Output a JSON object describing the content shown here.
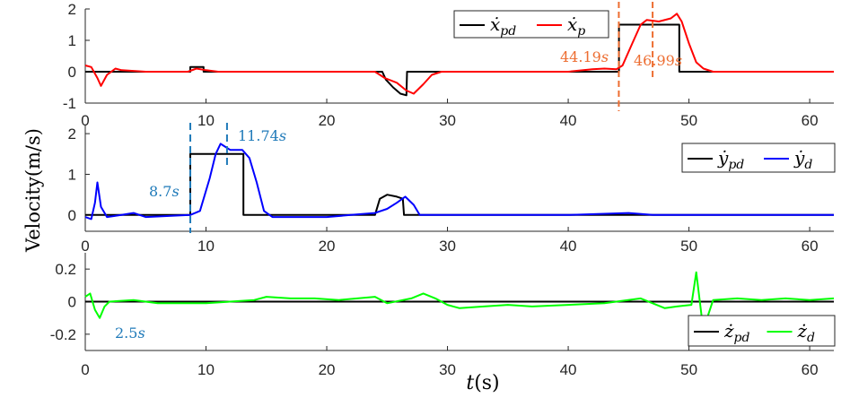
{
  "figure": {
    "ylabel": "Velocity(m/s)",
    "xlabel": "t(s)"
  },
  "chart_data": [
    {
      "type": "line",
      "xlim": [
        0,
        62
      ],
      "ylim": [
        -1,
        2
      ],
      "xticks": [
        "0",
        "10",
        "20",
        "30",
        "40",
        "50",
        "60"
      ],
      "yticks": [
        "-1",
        "0",
        "1",
        "2"
      ],
      "grid": false,
      "legend": "top-right",
      "series": [
        {
          "name": "ẋpd",
          "legend_base": "ẋ",
          "legend_sub": "pd",
          "color": "#000000",
          "points": [
            [
              0,
              0
            ],
            [
              8.7,
              0
            ],
            [
              8.7,
              0.15
            ],
            [
              9.8,
              0.15
            ],
            [
              9.8,
              0
            ],
            [
              24.6,
              0
            ],
            [
              24.9,
              -0.25
            ],
            [
              25.5,
              -0.5
            ],
            [
              26.1,
              -0.7
            ],
            [
              26.6,
              -0.75
            ],
            [
              26.65,
              0
            ],
            [
              44.2,
              0
            ],
            [
              44.2,
              1.5
            ],
            [
              49.2,
              1.5
            ],
            [
              49.2,
              0
            ],
            [
              62,
              0
            ]
          ]
        },
        {
          "name": "ẋp",
          "legend_base": "ẋ",
          "legend_sub": "p",
          "color": "#ff0000",
          "points": [
            [
              0,
              0.2
            ],
            [
              0.5,
              0.15
            ],
            [
              1,
              -0.2
            ],
            [
              1.3,
              -0.45
            ],
            [
              1.8,
              -0.1
            ],
            [
              2.5,
              0.1
            ],
            [
              3,
              0.05
            ],
            [
              5,
              0
            ],
            [
              8.5,
              0
            ],
            [
              9.2,
              0.1
            ],
            [
              10,
              0.05
            ],
            [
              11,
              0
            ],
            [
              24,
              0
            ],
            [
              24.8,
              -0.2
            ],
            [
              25.8,
              -0.35
            ],
            [
              26.6,
              -0.6
            ],
            [
              27.2,
              -0.7
            ],
            [
              28,
              -0.4
            ],
            [
              28.7,
              -0.1
            ],
            [
              29.5,
              0
            ],
            [
              35,
              0
            ],
            [
              40,
              0
            ],
            [
              42,
              0.08
            ],
            [
              43,
              0.1
            ],
            [
              44,
              0.08
            ],
            [
              44.5,
              0.2
            ],
            [
              45.3,
              0.9
            ],
            [
              46,
              1.5
            ],
            [
              46.5,
              1.65
            ],
            [
              47.5,
              1.6
            ],
            [
              48.5,
              1.7
            ],
            [
              49,
              1.85
            ],
            [
              49.4,
              1.6
            ],
            [
              50,
              0.9
            ],
            [
              50.6,
              0.3
            ],
            [
              51.2,
              0.1
            ],
            [
              52,
              0
            ],
            [
              62,
              0
            ]
          ]
        }
      ],
      "annotations": [
        {
          "text": "44.19",
          "unit": "s",
          "x": 44.19,
          "color": "#ed6d31"
        },
        {
          "text": "46.99",
          "unit": "s",
          "x": 46.99,
          "color": "#ed6d31"
        }
      ]
    },
    {
      "type": "line",
      "xlim": [
        0,
        62
      ],
      "ylim": [
        -0.4,
        2.2
      ],
      "xticks": [
        "0",
        "10",
        "20",
        "30",
        "40",
        "50",
        "60"
      ],
      "yticks": [
        "0",
        "1",
        "2"
      ],
      "grid": false,
      "legend": "top-right",
      "series": [
        {
          "name": "ẏpd",
          "legend_base": "ẏ",
          "legend_sub": "pd",
          "color": "#000000",
          "points": [
            [
              0,
              0
            ],
            [
              8.7,
              0
            ],
            [
              8.7,
              1.5
            ],
            [
              13.1,
              1.5
            ],
            [
              13.1,
              0
            ],
            [
              24,
              0
            ],
            [
              24.4,
              0.4
            ],
            [
              25,
              0.5
            ],
            [
              25.8,
              0.45
            ],
            [
              26.3,
              0.4
            ],
            [
              26.4,
              0
            ],
            [
              62,
              0
            ]
          ]
        },
        {
          "name": "ẏd",
          "legend_base": "ẏ",
          "legend_sub": "d",
          "color": "#0000ff",
          "points": [
            [
              0,
              -0.05
            ],
            [
              0.5,
              -0.1
            ],
            [
              0.8,
              0.3
            ],
            [
              1,
              0.8
            ],
            [
              1.3,
              0.2
            ],
            [
              1.8,
              -0.05
            ],
            [
              3,
              0
            ],
            [
              4,
              0.05
            ],
            [
              5,
              -0.05
            ],
            [
              8.7,
              0
            ],
            [
              9.5,
              0.1
            ],
            [
              10.3,
              0.9
            ],
            [
              10.8,
              1.5
            ],
            [
              11.2,
              1.75
            ],
            [
              12,
              1.6
            ],
            [
              13,
              1.6
            ],
            [
              13.6,
              1.4
            ],
            [
              14.2,
              0.8
            ],
            [
              14.8,
              0.1
            ],
            [
              15.5,
              -0.05
            ],
            [
              20,
              -0.05
            ],
            [
              22,
              0
            ],
            [
              24,
              0.05
            ],
            [
              25,
              0.15
            ],
            [
              25.8,
              0.3
            ],
            [
              26.5,
              0.45
            ],
            [
              27.2,
              0.25
            ],
            [
              27.7,
              0
            ],
            [
              35,
              0
            ],
            [
              40,
              0
            ],
            [
              45,
              0.05
            ],
            [
              47,
              0
            ],
            [
              62,
              0
            ]
          ]
        }
      ],
      "annotations": [
        {
          "text": "8.7",
          "unit": "s",
          "x": 8.7,
          "color": "#1f7ab9"
        },
        {
          "text": "11.74",
          "unit": "s",
          "x": 11.74,
          "color": "#1f7ab9"
        }
      ]
    },
    {
      "type": "line",
      "xlim": [
        0,
        62
      ],
      "ylim": [
        -0.3,
        0.3
      ],
      "xticks": [
        "0",
        "10",
        "20",
        "30",
        "40",
        "50",
        "60"
      ],
      "yticks": [
        "-0.2",
        "0",
        "0.2"
      ],
      "grid": false,
      "legend": "bottom-right",
      "series": [
        {
          "name": "żpd",
          "legend_base": "ż",
          "legend_sub": "pd",
          "color": "#000000",
          "points": [
            [
              0,
              0
            ],
            [
              62,
              0
            ]
          ]
        },
        {
          "name": "żd",
          "legend_base": "ż",
          "legend_sub": "d",
          "color": "#00ff00",
          "points": [
            [
              0,
              0.03
            ],
            [
              0.4,
              0.05
            ],
            [
              0.8,
              -0.05
            ],
            [
              1.2,
              -0.1
            ],
            [
              1.6,
              -0.03
            ],
            [
              2,
              0
            ],
            [
              4,
              0.01
            ],
            [
              6,
              -0.01
            ],
            [
              10,
              -0.01
            ],
            [
              14,
              0.01
            ],
            [
              15,
              0.03
            ],
            [
              17,
              0.02
            ],
            [
              19,
              0.02
            ],
            [
              21,
              0.01
            ],
            [
              24,
              0.03
            ],
            [
              25,
              -0.01
            ],
            [
              27,
              0.02
            ],
            [
              28,
              0.05
            ],
            [
              29,
              0.02
            ],
            [
              30,
              -0.02
            ],
            [
              31,
              -0.04
            ],
            [
              33,
              -0.03
            ],
            [
              35,
              -0.02
            ],
            [
              37,
              -0.03
            ],
            [
              40,
              -0.02
            ],
            [
              43,
              -0.01
            ],
            [
              46,
              0.02
            ],
            [
              48,
              -0.04
            ],
            [
              49,
              -0.03
            ],
            [
              50.2,
              -0.02
            ],
            [
              50.6,
              0.18
            ],
            [
              50.9,
              0
            ],
            [
              51.2,
              -0.18
            ],
            [
              51.6,
              -0.08
            ],
            [
              52,
              0.01
            ],
            [
              54,
              0.02
            ],
            [
              56,
              0.01
            ],
            [
              58,
              0.02
            ],
            [
              60,
              0.01
            ],
            [
              62,
              0.02
            ]
          ]
        }
      ],
      "annotations": [
        {
          "text": "2.5",
          "unit": "s",
          "color": "#1f7ab9"
        }
      ]
    }
  ]
}
